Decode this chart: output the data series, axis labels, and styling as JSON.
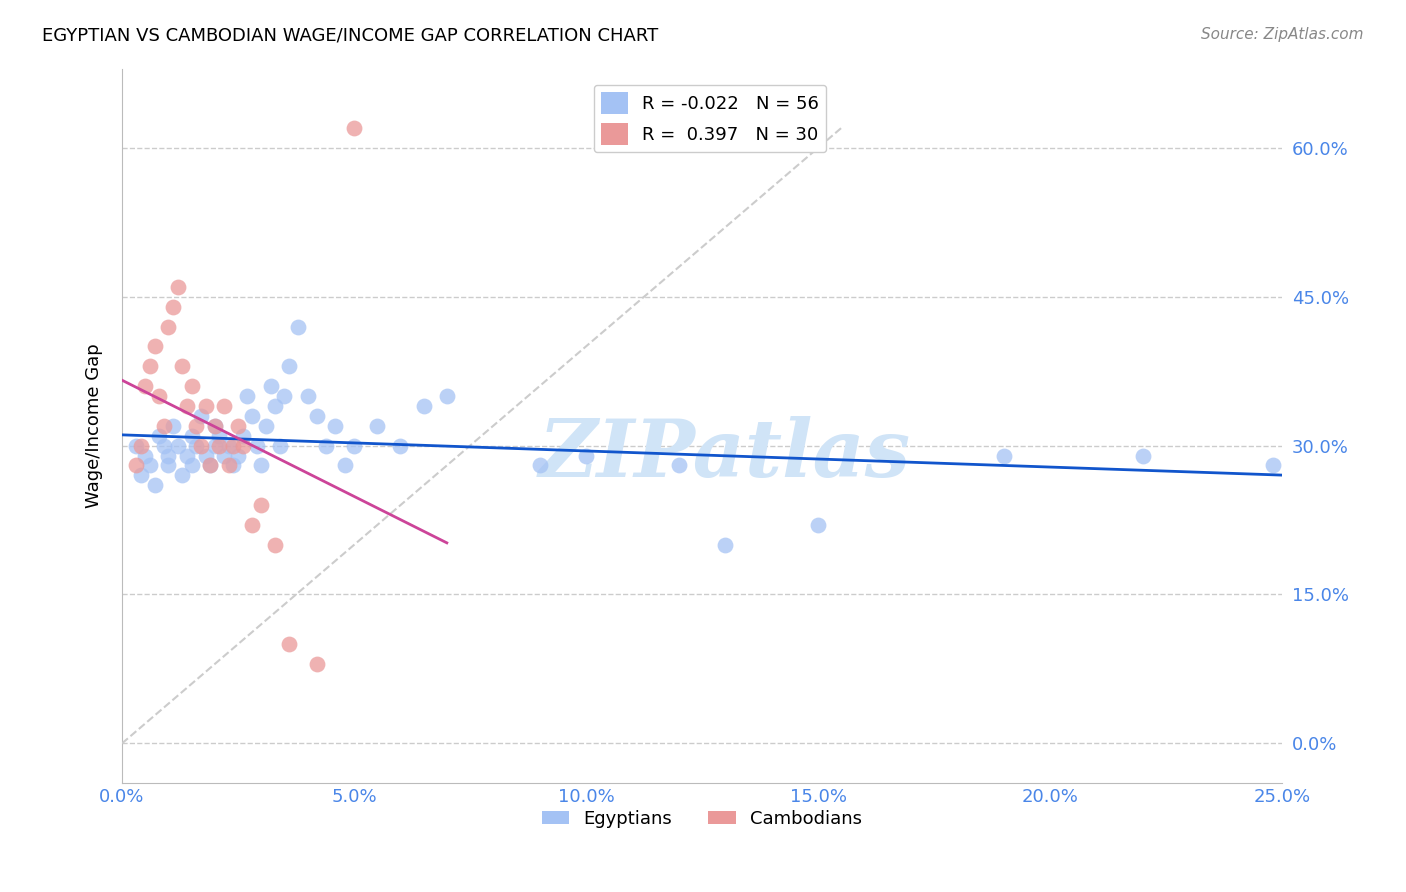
{
  "title": "EGYPTIAN VS CAMBODIAN WAGE/INCOME GAP CORRELATION CHART",
  "source": "Source: ZipAtlas.com",
  "ylabel": "Wage/Income Gap",
  "x_min": 0.0,
  "x_max": 0.25,
  "y_min": -0.04,
  "y_max": 0.68,
  "y_ticks": [
    0.0,
    0.15,
    0.3,
    0.45,
    0.6
  ],
  "x_ticks": [
    0.0,
    0.05,
    0.1,
    0.15,
    0.2,
    0.25
  ],
  "blue_color": "#a4c2f4",
  "pink_color": "#ea9999",
  "blue_line_color": "#1155cc",
  "pink_line_color": "#cc4499",
  "legend_r_blue": "-0.022",
  "legend_n_blue": "56",
  "legend_r_pink": "0.397",
  "legend_n_pink": "30",
  "axis_label_color": "#4a86e8",
  "watermark_color": "#d0e4f7",
  "egyptians_x": [
    0.003,
    0.004,
    0.005,
    0.006,
    0.007,
    0.008,
    0.009,
    0.01,
    0.01,
    0.011,
    0.012,
    0.013,
    0.014,
    0.015,
    0.015,
    0.016,
    0.017,
    0.018,
    0.019,
    0.02,
    0.02,
    0.021,
    0.022,
    0.023,
    0.024,
    0.025,
    0.026,
    0.027,
    0.028,
    0.029,
    0.03,
    0.031,
    0.032,
    0.033,
    0.034,
    0.035,
    0.036,
    0.038,
    0.04,
    0.042,
    0.044,
    0.046,
    0.048,
    0.05,
    0.055,
    0.06,
    0.065,
    0.07,
    0.09,
    0.1,
    0.12,
    0.13,
    0.15,
    0.19,
    0.22,
    0.248
  ],
  "egyptians_y": [
    0.3,
    0.27,
    0.29,
    0.28,
    0.26,
    0.31,
    0.3,
    0.29,
    0.28,
    0.32,
    0.3,
    0.27,
    0.29,
    0.31,
    0.28,
    0.3,
    0.33,
    0.29,
    0.28,
    0.32,
    0.3,
    0.31,
    0.29,
    0.3,
    0.28,
    0.29,
    0.31,
    0.35,
    0.33,
    0.3,
    0.28,
    0.32,
    0.36,
    0.34,
    0.3,
    0.35,
    0.38,
    0.42,
    0.35,
    0.33,
    0.3,
    0.32,
    0.28,
    0.3,
    0.32,
    0.3,
    0.34,
    0.35,
    0.28,
    0.29,
    0.28,
    0.2,
    0.22,
    0.29,
    0.29,
    0.28
  ],
  "cambodians_x": [
    0.003,
    0.004,
    0.005,
    0.006,
    0.007,
    0.008,
    0.009,
    0.01,
    0.011,
    0.012,
    0.013,
    0.014,
    0.015,
    0.016,
    0.017,
    0.018,
    0.019,
    0.02,
    0.021,
    0.022,
    0.023,
    0.024,
    0.025,
    0.026,
    0.028,
    0.03,
    0.033,
    0.036,
    0.042,
    0.05
  ],
  "cambodians_y": [
    0.28,
    0.3,
    0.36,
    0.38,
    0.4,
    0.35,
    0.32,
    0.42,
    0.44,
    0.46,
    0.38,
    0.34,
    0.36,
    0.32,
    0.3,
    0.34,
    0.28,
    0.32,
    0.3,
    0.34,
    0.28,
    0.3,
    0.32,
    0.3,
    0.22,
    0.24,
    0.2,
    0.1,
    0.08,
    0.62
  ],
  "diag_line_x": [
    0.0,
    0.155
  ],
  "diag_line_y": [
    0.0,
    0.62
  ]
}
